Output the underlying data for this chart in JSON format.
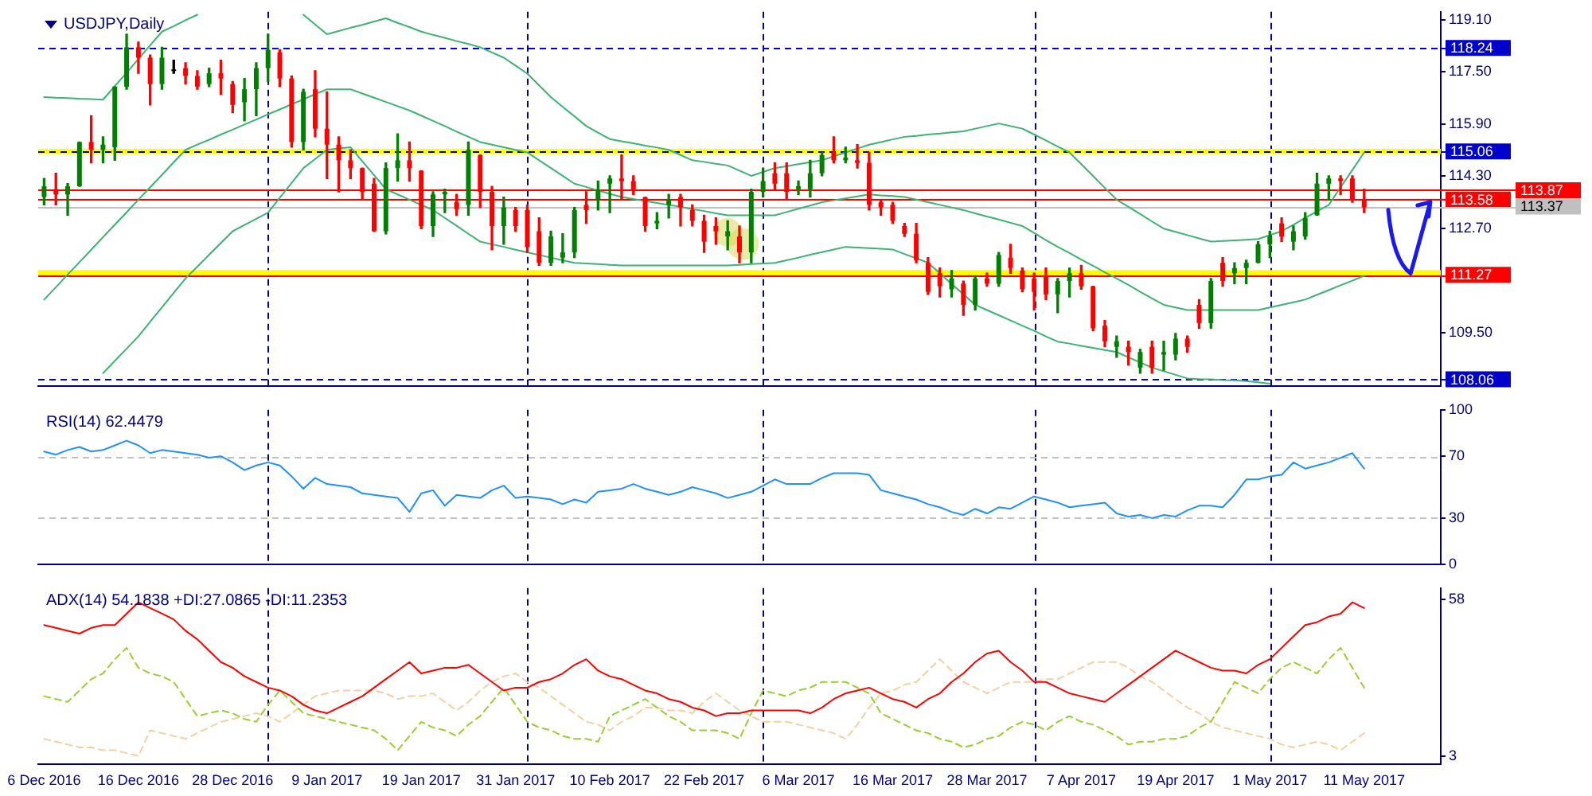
{
  "chart_data": [
    {
      "type": "candlestick",
      "title": "USDJPY,Daily",
      "tick_labels": "y",
      "grid": false,
      "legend": false,
      "categories": [
        null,
        null,
        null,
        null,
        null,
        null,
        null,
        null,
        null,
        null,
        null,
        null,
        null,
        null,
        null,
        null,
        null,
        null,
        null,
        null,
        null,
        null,
        null,
        null,
        null,
        null,
        null,
        null,
        null,
        null,
        null,
        null,
        null,
        null,
        null,
        null,
        null,
        null,
        null,
        null,
        null,
        null,
        null,
        null,
        null,
        null,
        null,
        null,
        null,
        null,
        null,
        null,
        null,
        null,
        null,
        null,
        null,
        null,
        null,
        null,
        null,
        null,
        null,
        null,
        null,
        null,
        null,
        null,
        null,
        null,
        null,
        null,
        null,
        null,
        null,
        null,
        null,
        null,
        null,
        null,
        null,
        null,
        null,
        null,
        null,
        null,
        null,
        null,
        null,
        null,
        null,
        null,
        null,
        null,
        null,
        null,
        null,
        null,
        null,
        null,
        null,
        null,
        null,
        null,
        null,
        null,
        null,
        null,
        null,
        null,
        null,
        null,
        null,
        null,
        null,
        null,
        null,
        null,
        null
      ],
      "ylim": [
        107.85,
        119.35
      ],
      "yticks": [
        {
          "value": 119.1,
          "label": "119.10"
        },
        {
          "value": 117.5,
          "label": "117.50"
        },
        {
          "value": 115.9,
          "label": "115.90"
        },
        {
          "value": 114.3,
          "label": "114.30"
        },
        {
          "value": 112.7,
          "label": "112.70"
        },
        {
          "value": 109.5,
          "label": "109.50"
        }
      ],
      "bands": [
        {
          "axis": "y",
          "from": 114.98,
          "to": 115.14,
          "color": "#ffff00"
        },
        {
          "axis": "y",
          "from": 111.22,
          "to": 111.42,
          "color": "#ffff00"
        }
      ],
      "ref_lines": [
        {
          "axis": "y",
          "value": 118.24,
          "label": "118.24",
          "color": "#0000cd",
          "line_style": "dashed"
        },
        {
          "axis": "y",
          "value": 115.06,
          "label": "115.06",
          "color": "#0000cd",
          "line_style": "dashed"
        },
        {
          "axis": "y",
          "value": 113.87,
          "label": "113.87",
          "color": "#ff0000"
        },
        {
          "axis": "y",
          "value": 113.58,
          "label": "113.58",
          "color": "#ff0000"
        },
        {
          "axis": "y",
          "value": 113.37,
          "label": "113.37",
          "color": "#c0c0c0"
        },
        {
          "axis": "y",
          "value": 111.27,
          "label": "111.27",
          "color": "#ff0000"
        },
        {
          "axis": "y",
          "value": 108.06,
          "label": "108.06",
          "color": "#0000cd",
          "line_style": "dashed"
        }
      ],
      "ohlc": [
        [
          113.66,
          114.23,
          113.42,
          113.99
        ],
        [
          113.9,
          114.39,
          113.42,
          113.74
        ],
        [
          113.74,
          114.07,
          113.1,
          113.99
        ],
        [
          113.99,
          115.35,
          113.99,
          115.35
        ],
        [
          115.35,
          116.16,
          114.71,
          115.11
        ],
        [
          115.11,
          115.51,
          114.71,
          115.27
        ],
        [
          115.19,
          117.05,
          114.79,
          117.05
        ],
        [
          117.05,
          118.66,
          116.97,
          118.26
        ],
        [
          118.26,
          118.42,
          117.46,
          117.94
        ],
        [
          117.94,
          118.02,
          116.49,
          117.13
        ],
        [
          117.13,
          118.26,
          116.97,
          117.94
        ],
        [
          117.58,
          117.86,
          117.46,
          117.58
        ],
        [
          117.62,
          117.78,
          117.13,
          117.38
        ],
        [
          117.38,
          117.54,
          116.97,
          117.05
        ],
        [
          117.13,
          117.62,
          117.05,
          117.46
        ],
        [
          117.46,
          117.86,
          116.81,
          117.3
        ],
        [
          117.13,
          117.21,
          116.25,
          116.49
        ],
        [
          116.57,
          117.3,
          116.0,
          116.97
        ],
        [
          116.97,
          117.78,
          116.16,
          117.62
        ],
        [
          117.62,
          118.66,
          117.21,
          118.18
        ],
        [
          118.1,
          118.18,
          117.05,
          117.3
        ],
        [
          117.3,
          117.38,
          115.19,
          115.35
        ],
        [
          115.35,
          116.97,
          115.11,
          116.89
        ],
        [
          116.97,
          117.54,
          115.51,
          115.76
        ],
        [
          115.76,
          116.89,
          114.23,
          115.27
        ],
        [
          115.27,
          115.51,
          113.82,
          114.79
        ],
        [
          114.79,
          115.11,
          114.23,
          114.55
        ],
        [
          114.55,
          114.55,
          113.58,
          113.82
        ],
        [
          114.07,
          114.23,
          112.61,
          112.61
        ],
        [
          112.61,
          114.71,
          112.53,
          114.55
        ],
        [
          114.55,
          115.6,
          114.15,
          114.79
        ],
        [
          114.79,
          115.35,
          114.15,
          114.55
        ],
        [
          114.47,
          114.47,
          112.69,
          112.77
        ],
        [
          112.77,
          113.82,
          112.45,
          113.74
        ],
        [
          113.74,
          113.9,
          113.18,
          113.82
        ],
        [
          113.5,
          113.74,
          113.1,
          113.29
        ],
        [
          113.42,
          115.35,
          113.1,
          115.11
        ],
        [
          114.95,
          114.95,
          113.34,
          113.82
        ],
        [
          113.82,
          113.99,
          112.04,
          112.77
        ],
        [
          112.77,
          113.66,
          112.21,
          113.34
        ],
        [
          113.26,
          113.34,
          112.61,
          112.77
        ],
        [
          113.26,
          113.42,
          111.96,
          112.12
        ],
        [
          112.61,
          113.02,
          111.56,
          111.64
        ],
        [
          111.64,
          112.61,
          111.56,
          112.45
        ],
        [
          111.8,
          112.53,
          111.64,
          111.96
        ],
        [
          111.96,
          113.34,
          111.8,
          113.26
        ],
        [
          113.42,
          113.82,
          112.85,
          113.26
        ],
        [
          113.58,
          114.15,
          113.26,
          113.9
        ],
        [
          114.07,
          114.31,
          113.18,
          114.23
        ],
        [
          114.23,
          114.95,
          113.58,
          114.15
        ],
        [
          114.15,
          114.31,
          113.74,
          113.9
        ],
        [
          113.66,
          113.66,
          112.61,
          112.77
        ],
        [
          112.85,
          113.18,
          112.69,
          112.93
        ],
        [
          113.42,
          113.74,
          113.02,
          113.58
        ],
        [
          113.66,
          113.74,
          112.77,
          113.34
        ],
        [
          113.26,
          113.42,
          112.77,
          112.93
        ],
        [
          112.93,
          113.1,
          111.96,
          112.29
        ],
        [
          112.77,
          113.02,
          112.21,
          112.61
        ],
        [
          112.45,
          112.93,
          112.04,
          112.61
        ],
        [
          112.45,
          112.77,
          111.64,
          111.96
        ],
        [
          111.96,
          113.9,
          111.64,
          113.82
        ],
        [
          113.82,
          114.55,
          113.66,
          114.15
        ],
        [
          114.39,
          114.71,
          113.9,
          114.07
        ],
        [
          114.39,
          114.71,
          113.58,
          113.82
        ],
        [
          113.9,
          114.15,
          113.74,
          113.99
        ],
        [
          113.9,
          114.79,
          113.66,
          114.39
        ],
        [
          114.39,
          115.03,
          114.31,
          114.95
        ],
        [
          115.03,
          115.51,
          114.71,
          114.79
        ],
        [
          114.79,
          115.19,
          114.71,
          114.87
        ],
        [
          114.79,
          115.27,
          114.55,
          114.71
        ],
        [
          114.71,
          115.03,
          113.26,
          113.42
        ],
        [
          113.5,
          113.58,
          113.1,
          113.34
        ],
        [
          113.42,
          113.5,
          112.85,
          112.93
        ],
        [
          112.77,
          112.85,
          112.45,
          112.53
        ],
        [
          112.53,
          112.85,
          111.64,
          111.72
        ],
        [
          111.64,
          111.8,
          110.67,
          110.75
        ],
        [
          111.32,
          111.48,
          110.59,
          110.92
        ],
        [
          110.83,
          111.4,
          110.59,
          111.16
        ],
        [
          111.0,
          111.08,
          110.03,
          110.35
        ],
        [
          110.35,
          111.24,
          110.19,
          111.16
        ],
        [
          111.16,
          111.32,
          110.92,
          111.0
        ],
        [
          111.0,
          111.96,
          110.92,
          111.88
        ],
        [
          111.8,
          112.21,
          111.32,
          111.48
        ],
        [
          111.4,
          111.48,
          110.75,
          110.83
        ],
        [
          111.16,
          111.32,
          110.19,
          110.75
        ],
        [
          111.24,
          111.48,
          110.51,
          110.67
        ],
        [
          110.67,
          111.16,
          110.11,
          111.08
        ],
        [
          111.08,
          111.48,
          110.59,
          111.32
        ],
        [
          111.32,
          111.56,
          110.83,
          110.92
        ],
        [
          110.92,
          110.92,
          109.55,
          109.63
        ],
        [
          109.71,
          109.87,
          109.06,
          109.23
        ],
        [
          109.06,
          109.39,
          108.74,
          109.23
        ],
        [
          109.06,
          109.23,
          108.5,
          108.9
        ],
        [
          108.42,
          108.98,
          108.25,
          108.9
        ],
        [
          109.06,
          109.23,
          108.25,
          108.42
        ],
        [
          108.82,
          109.23,
          108.34,
          108.9
        ],
        [
          108.82,
          109.47,
          108.66,
          109.31
        ],
        [
          109.31,
          109.39,
          108.9,
          109.06
        ],
        [
          110.35,
          110.51,
          109.63,
          109.79
        ],
        [
          109.79,
          111.16,
          109.63,
          111.08
        ],
        [
          111.64,
          111.8,
          110.92,
          111.08
        ],
        [
          111.32,
          111.64,
          111.0,
          111.48
        ],
        [
          111.48,
          111.72,
          111.0,
          111.64
        ],
        [
          111.64,
          112.29,
          111.64,
          112.21
        ],
        [
          112.21,
          112.61,
          111.8,
          112.45
        ],
        [
          112.85,
          113.02,
          112.29,
          112.45
        ],
        [
          112.29,
          112.77,
          112.04,
          112.61
        ],
        [
          112.45,
          113.18,
          112.37,
          113.02
        ],
        [
          113.1,
          114.39,
          113.1,
          114.07
        ],
        [
          114.07,
          114.31,
          113.58,
          114.23
        ],
        [
          114.23,
          114.31,
          113.74,
          114.15
        ],
        [
          114.23,
          114.31,
          113.5,
          113.58
        ],
        [
          113.58,
          113.9,
          113.18,
          113.34
        ],
        null,
        null,
        null,
        null,
        null,
        null
      ],
      "colors": [
        "#008000",
        "#ff0000",
        "#008000",
        "#008000",
        "#ff0000",
        "#008000",
        "#008000",
        "#008000",
        "#ff0000",
        "#ff0000",
        "#008000",
        "#000000",
        "#ff0000",
        "#ff0000",
        "#008000",
        "#ff0000",
        "#ff0000",
        "#008000",
        "#008000",
        "#008000",
        "#ff0000",
        "#ff0000",
        "#008000",
        "#ff0000",
        "#ff0000",
        "#ff0000",
        "#ff0000",
        "#ff0000",
        "#ff0000",
        "#008000",
        "#008000",
        "#ff0000",
        "#ff0000",
        "#008000",
        "#008000",
        "#ff0000",
        "#008000",
        "#ff0000",
        "#ff0000",
        "#008000",
        "#ff0000",
        "#ff0000",
        "#ff0000",
        "#008000",
        "#008000",
        "#008000",
        "#ff0000",
        "#008000",
        "#008000",
        "#ff0000",
        "#ff0000",
        "#ff0000",
        "#008000",
        "#008000",
        "#ff0000",
        "#ff0000",
        "#ff0000",
        "#ff0000",
        "#008000",
        "#ff0000",
        "#008000",
        "#008000",
        "#ff0000",
        "#ff0000",
        "#008000",
        "#008000",
        "#008000",
        "#ff0000",
        "#008000",
        "#ff0000",
        "#ff0000",
        "#ff0000",
        "#ff0000",
        "#ff0000",
        "#ff0000",
        "#ff0000",
        "#ff0000",
        "#008000",
        "#ff0000",
        "#008000",
        "#ff0000",
        "#008000",
        "#ff0000",
        "#ff0000",
        "#ff0000",
        "#ff0000",
        "#008000",
        "#008000",
        "#ff0000",
        "#ff0000",
        "#ff0000",
        "#008000",
        "#ff0000",
        "#008000",
        "#ff0000",
        "#008000",
        "#008000",
        "#ff0000",
        "#ff0000",
        "#008000",
        "#ff0000",
        "#008000",
        "#008000",
        "#008000",
        "#008000",
        "#ff0000",
        "#008000",
        "#008000",
        "#008000",
        "#008000",
        "#ff0000",
        "#ff0000",
        "#ff0000",
        null,
        null,
        null,
        null,
        null,
        null
      ],
      "series": [
        {
          "type": "line",
          "color": "#3cb371",
          "values": [
            116.73,
            116.71,
            116.7,
            116.68,
            116.67,
            116.65,
            117.07,
            117.48,
            117.9,
            118.32,
            118.74,
            118.91,
            119.09,
            119.26,
            null,
            null,
            null,
            null,
            null,
            null,
            null,
            null,
            119.26,
            118.96,
            118.66,
            118.76,
            118.86,
            118.95,
            119.05,
            119.15,
            119.01,
            118.88,
            118.74,
            118.64,
            118.55,
            118.45,
            118.36,
            118.26,
            118.1,
            117.94,
            117.7,
            117.45,
            117.09,
            116.73,
            116.43,
            116.14,
            115.84,
            115.64,
            115.44,
            115.37,
            115.31,
            115.24,
            115.18,
            115.11,
            114.95,
            114.79,
            114.74,
            114.68,
            114.63,
            114.47,
            114.31,
            114.43,
            114.55,
            114.61,
            114.67,
            114.73,
            114.79,
            114.91,
            115.03,
            115.15,
            115.27,
            115.35,
            115.43,
            115.51,
            115.54,
            115.58,
            115.61,
            115.65,
            115.68,
            115.76,
            115.84,
            115.92,
            115.84,
            115.76,
            115.58,
            115.4,
            115.21,
            115.03,
            114.67,
            114.31,
            113.94,
            113.58,
            113.36,
            113.14,
            112.91,
            112.69,
            112.59,
            112.49,
            112.39,
            112.29,
            112.31,
            112.33,
            112.35,
            112.37,
            112.49,
            112.61,
            112.81,
            113.02,
            113.22,
            113.42,
            113.96,
            114.49,
            115.03,
            null,
            null,
            null,
            null,
            null,
            null
          ]
        },
        {
          "type": "line",
          "color": "#3cb371",
          "values": [
            110.51,
            110.89,
            111.28,
            111.66,
            112.04,
            112.43,
            112.81,
            113.19,
            113.58,
            113.96,
            114.34,
            114.73,
            115.11,
            115.27,
            115.42,
            115.58,
            115.73,
            115.89,
            116.04,
            116.2,
            116.35,
            116.51,
            116.66,
            116.82,
            116.97,
            116.97,
            116.97,
            116.84,
            116.71,
            116.58,
            116.45,
            116.32,
            116.16,
            116.0,
            115.84,
            115.67,
            115.51,
            115.35,
            115.27,
            115.19,
            115.11,
            115.03,
            114.79,
            114.55,
            114.31,
            114.07,
            113.97,
            113.86,
            113.76,
            113.66,
            113.6,
            113.54,
            113.48,
            113.42,
            113.36,
            113.29,
            113.23,
            113.16,
            113.1,
            113.1,
            113.1,
            113.1,
            113.1,
            113.2,
            113.3,
            113.4,
            113.5,
            113.56,
            113.62,
            113.68,
            113.74,
            113.71,
            113.69,
            113.66,
            113.58,
            113.5,
            113.42,
            113.34,
            113.26,
            113.16,
            113.06,
            112.97,
            112.87,
            112.77,
            112.56,
            112.34,
            112.13,
            111.94,
            111.74,
            111.55,
            111.35,
            111.16,
            110.96,
            110.75,
            110.55,
            110.35,
            110.27,
            110.19,
            110.19,
            110.19,
            110.19,
            110.19,
            110.19,
            110.19,
            110.27,
            110.35,
            110.43,
            110.51,
            110.66,
            110.8,
            110.95,
            111.09,
            111.24,
            null,
            null,
            null,
            null,
            null,
            null
          ]
        },
        {
          "type": "line",
          "color": "#3cb371",
          "values": [
            null,
            null,
            null,
            null,
            null,
            108.25,
            108.63,
            109.0,
            109.38,
            109.83,
            110.27,
            110.72,
            111.16,
            111.52,
            111.89,
            112.25,
            112.61,
            112.8,
            112.99,
            113.18,
            113.64,
            114.09,
            114.55,
            114.83,
            115.11,
            115.15,
            115.19,
            114.76,
            114.33,
            113.9,
            113.74,
            113.58,
            113.42,
            113.26,
            113.02,
            112.78,
            112.53,
            112.29,
            112.21,
            112.13,
            112.04,
            111.96,
            111.88,
            111.8,
            111.72,
            111.64,
            111.62,
            111.6,
            111.58,
            111.56,
            111.56,
            111.56,
            111.56,
            111.56,
            111.56,
            111.56,
            111.56,
            111.56,
            111.56,
            111.58,
            111.6,
            111.62,
            111.64,
            111.72,
            111.8,
            111.89,
            111.97,
            112.05,
            112.13,
            112.11,
            112.09,
            112.07,
            112.05,
            111.91,
            111.78,
            111.64,
            111.32,
            110.99,
            110.67,
            110.35,
            110.19,
            110.03,
            109.87,
            109.71,
            109.55,
            109.38,
            109.22,
            109.16,
            109.09,
            109.03,
            108.96,
            108.9,
            108.74,
            108.58,
            108.42,
            108.31,
            108.2,
            108.09,
            108.07,
            108.06,
            108.04,
            108.03,
            108.01,
            107.97,
            107.93,
            null,
            null,
            null,
            null,
            null,
            null,
            null,
            null,
            null,
            null,
            null,
            null,
            null,
            null
          ]
        }
      ]
    },
    {
      "type": "line",
      "title": "RSI(14) 62.4479",
      "tick_labels": "y",
      "grid": false,
      "legend": false,
      "marker": "none",
      "categories": [
        null,
        null,
        null,
        null,
        null,
        null,
        null,
        null,
        null,
        null,
        null,
        null,
        null,
        null,
        null,
        null,
        null,
        null,
        null,
        null,
        null,
        null,
        null,
        null,
        null,
        null,
        null,
        null,
        null,
        null,
        null,
        null,
        null,
        null,
        null,
        null,
        null,
        null,
        null,
        null,
        null,
        null,
        null,
        null,
        null,
        null,
        null,
        null,
        null,
        null,
        null,
        null,
        null,
        null,
        null,
        null,
        null,
        null,
        null,
        null,
        null,
        null,
        null,
        null,
        null,
        null,
        null,
        null,
        null,
        null,
        null,
        null,
        null,
        null,
        null,
        null,
        null,
        null,
        null,
        null,
        null,
        null,
        null,
        null,
        null,
        null,
        null,
        null,
        null,
        null,
        null,
        null,
        null,
        null,
        null,
        null,
        null,
        null,
        null,
        null,
        null,
        null,
        null,
        null,
        null,
        null,
        null,
        null,
        null,
        null,
        null,
        null,
        null,
        null,
        null,
        null,
        null,
        null,
        null
      ],
      "ylim": [
        0,
        100
      ],
      "yticks": [
        0,
        30,
        70,
        100
      ],
      "ref_lines": [
        {
          "axis": "y",
          "value": 30,
          "color": "#c0c0c0",
          "line_style": "dashed"
        },
        {
          "axis": "y",
          "value": 70,
          "color": "#c0c0c0",
          "line_style": "dashed"
        }
      ],
      "series": [
        {
          "color": "#1e90ff",
          "values": [
            73,
            71,
            74,
            76,
            73,
            74,
            77,
            80,
            77,
            72,
            74,
            73,
            72,
            71,
            69,
            70,
            66,
            61,
            64,
            66,
            64,
            57,
            49,
            56,
            52,
            51,
            50,
            46,
            45,
            44,
            43,
            34,
            46,
            48,
            38,
            45,
            44,
            43,
            48,
            51,
            43,
            44,
            43,
            42,
            39,
            42,
            40,
            47,
            48,
            49,
            52,
            49,
            47,
            45,
            47,
            50,
            48,
            46,
            43,
            45,
            47,
            51,
            55,
            52,
            52,
            52,
            56,
            59,
            59,
            59,
            58,
            48,
            46,
            44,
            42,
            39,
            37,
            34,
            32,
            36,
            33,
            37,
            36,
            40,
            44,
            42,
            40,
            37,
            38,
            39,
            40,
            33,
            31,
            32,
            30,
            32,
            31,
            35,
            38,
            38,
            37,
            45,
            55,
            55,
            57,
            58,
            66,
            62,
            64,
            66,
            69,
            72,
            62,
            null,
            null,
            null,
            null,
            null,
            null
          ]
        }
      ]
    },
    {
      "type": "line",
      "title": "ADX(14) 54.1838 +DI:27.0865 -DI:11.2353",
      "grid": false,
      "legend": false,
      "marker": "none",
      "categories": [
        "6 Dec 2016",
        null,
        null,
        null,
        null,
        null,
        null,
        null,
        "16 Dec 2016",
        null,
        null,
        null,
        null,
        null,
        null,
        null,
        "28 Dec 2016",
        null,
        null,
        null,
        null,
        null,
        null,
        null,
        "9 Jan 2017",
        null,
        null,
        null,
        null,
        null,
        null,
        null,
        "19 Jan 2017",
        null,
        null,
        null,
        null,
        null,
        null,
        null,
        "31 Jan 2017",
        null,
        null,
        null,
        null,
        null,
        null,
        null,
        "10 Feb 2017",
        null,
        null,
        null,
        null,
        null,
        null,
        null,
        "22 Feb 2017",
        null,
        null,
        null,
        null,
        null,
        null,
        null,
        "6 Mar 2017",
        null,
        null,
        null,
        null,
        null,
        null,
        null,
        "16 Mar 2017",
        null,
        null,
        null,
        null,
        null,
        null,
        null,
        "28 Mar 2017",
        null,
        null,
        null,
        null,
        null,
        null,
        null,
        "7 Apr 2017",
        null,
        null,
        null,
        null,
        null,
        null,
        null,
        "19 Apr 2017",
        null,
        null,
        null,
        null,
        null,
        null,
        null,
        "1 May 2017",
        null,
        null,
        null,
        null,
        null,
        null,
        null,
        "11 May 2017",
        null,
        null,
        null,
        null,
        null,
        null
      ],
      "ylim": [
        0,
        62
      ],
      "yticks": [
        3,
        58
      ],
      "series": [
        {
          "color": "#ff0000",
          "values": [
            49,
            48,
            47,
            46,
            48,
            49,
            49,
            53,
            57,
            55,
            53,
            51,
            47,
            44,
            40,
            36,
            34,
            31,
            29,
            27,
            26,
            24,
            21,
            19,
            18,
            20,
            22,
            24,
            27,
            30,
            33,
            36,
            32,
            33,
            34,
            34,
            35,
            32,
            29,
            26,
            27,
            27,
            29,
            30,
            32,
            35,
            37,
            33,
            31,
            30,
            28,
            26,
            25,
            23,
            22,
            20,
            19,
            17,
            18,
            18,
            19,
            19,
            19,
            19,
            19,
            18,
            20,
            23,
            25,
            26,
            27,
            25,
            23,
            22,
            20,
            23,
            25,
            29,
            32,
            36,
            39,
            40,
            36,
            33,
            29,
            29,
            27,
            25,
            24,
            23,
            22,
            25,
            28,
            31,
            34,
            37,
            40,
            38,
            36,
            34,
            33,
            33,
            32,
            35,
            37,
            41,
            45,
            49,
            50,
            52,
            53,
            57,
            55,
            null,
            null,
            null,
            null,
            null,
            null
          ]
        },
        {
          "color": "#9acd32",
          "line_style": "dashed",
          "values": [
            24,
            23,
            22,
            26,
            30,
            32,
            37,
            41,
            34,
            32,
            31,
            29,
            23,
            17,
            18,
            19,
            18,
            16,
            15,
            21,
            26,
            22,
            18,
            17,
            16,
            15,
            14,
            13,
            12,
            9,
            5,
            10,
            15,
            13,
            12,
            10,
            14,
            17,
            22,
            27,
            21,
            15,
            13,
            12,
            10,
            9,
            9,
            8,
            17,
            19,
            21,
            23,
            20,
            17,
            15,
            12,
            12,
            12,
            11,
            9,
            18,
            26,
            25,
            24,
            26,
            27,
            29,
            29,
            29,
            27,
            25,
            18,
            16,
            14,
            12,
            11,
            9,
            8,
            6,
            7,
            9,
            10,
            13,
            15,
            14,
            12,
            15,
            17,
            15,
            14,
            12,
            10,
            7,
            8,
            8,
            9,
            9,
            10,
            13,
            15,
            22,
            29,
            27,
            25,
            30,
            34,
            36,
            34,
            32,
            37,
            41,
            34,
            27,
            null,
            null,
            null,
            null,
            null,
            null
          ]
        },
        {
          "color": "#f5cfa0",
          "line_style": "dashed",
          "values": [
            9,
            8,
            7,
            6,
            6,
            5,
            5,
            4,
            3,
            12,
            11,
            10,
            9,
            11,
            13,
            15,
            16,
            17,
            18,
            17,
            15,
            18,
            21,
            24,
            25,
            26,
            26,
            26,
            26,
            25,
            23,
            24,
            24,
            25,
            22,
            19,
            22,
            26,
            29,
            31,
            32,
            29,
            27,
            24,
            21,
            18,
            15,
            14,
            12,
            15,
            17,
            20,
            20,
            19,
            19,
            18,
            22,
            25,
            22,
            19,
            17,
            15,
            15,
            15,
            14,
            13,
            12,
            11,
            9,
            14,
            20,
            25,
            26,
            28,
            29,
            33,
            37,
            33,
            29,
            27,
            25,
            27,
            29,
            29,
            29,
            30,
            30,
            32,
            34,
            36,
            36,
            36,
            34,
            31,
            29,
            26,
            23,
            20,
            18,
            15,
            13,
            12,
            11,
            10,
            9,
            7,
            6,
            7,
            8,
            7,
            5,
            8,
            11,
            null,
            null,
            null,
            null,
            null,
            null
          ]
        }
      ]
    }
  ]
}
